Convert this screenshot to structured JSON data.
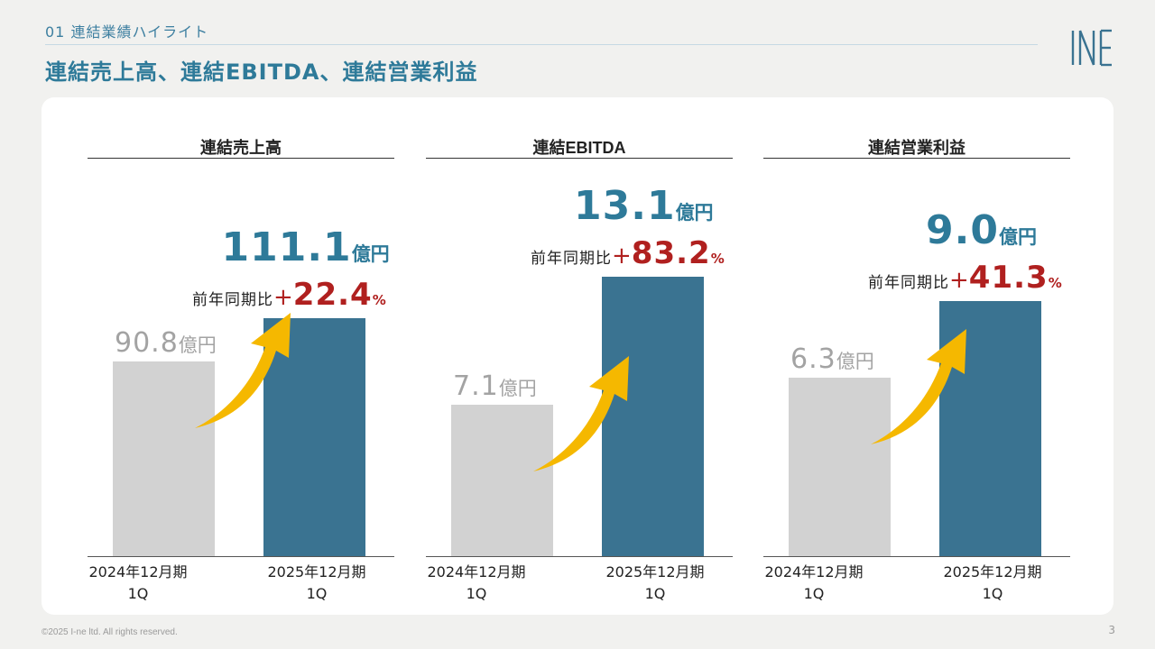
{
  "header": {
    "section_label": "01 連結業績ハイライト",
    "title": "連結売上高、連結EBITDA、連結営業利益"
  },
  "footer": {
    "copyright": "©2025 I-ne ltd. All rights reserved.",
    "page_number": "3"
  },
  "colors": {
    "accent": "#2e7a99",
    "bar_current": "#3a7391",
    "bar_previous": "#d2d2d2",
    "growth": "#b0201f",
    "arrow": "#f5b800"
  },
  "chart_data": [
    {
      "type": "bar",
      "title": "連結売上高",
      "categories": [
        [
          "2024年12月期",
          "1Q"
        ],
        [
          "2025年12月期",
          "1Q"
        ]
      ],
      "values": [
        90.8,
        111.1
      ],
      "value_labels": [
        "90.8",
        "111.1"
      ],
      "unit": "億円",
      "growth_label": "前年同期比",
      "growth_sign": "+",
      "growth_pct": "22.4",
      "growth_unit": "%"
    },
    {
      "type": "bar",
      "title": "連結EBITDA",
      "categories": [
        [
          "2024年12月期",
          "1Q"
        ],
        [
          "2025年12月期",
          "1Q"
        ]
      ],
      "values": [
        7.1,
        13.1
      ],
      "value_labels": [
        "7.1",
        "13.1"
      ],
      "unit": "億円",
      "growth_label": "前年同期比",
      "growth_sign": "+",
      "growth_pct": "83.2",
      "growth_unit": "%"
    },
    {
      "type": "bar",
      "title": "連結営業利益",
      "categories": [
        [
          "2024年12月期",
          "1Q"
        ],
        [
          "2025年12月期",
          "1Q"
        ]
      ],
      "values": [
        6.3,
        9.0
      ],
      "value_labels": [
        "6.3",
        "9.0"
      ],
      "unit": "億円",
      "growth_label": "前年同期比",
      "growth_sign": "+",
      "growth_pct": "41.3",
      "growth_unit": "%"
    }
  ]
}
